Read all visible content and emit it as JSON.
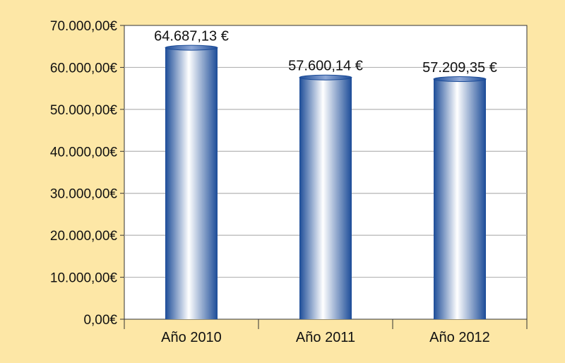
{
  "chart_data": {
    "type": "bar",
    "categories": [
      "Año 2010",
      "Año 2011",
      "Año 2012"
    ],
    "values": [
      64687.13,
      57600.14,
      57209.35
    ],
    "data_labels": [
      "64.687,13 €",
      "57.600,14 €",
      "57.209,35 €"
    ],
    "yticks": [
      0,
      10000,
      20000,
      30000,
      40000,
      50000,
      60000,
      70000
    ],
    "ytick_labels": [
      "0,00€",
      "10.000,00€",
      "20.000,00€",
      "30.000,00€",
      "40.000,00€",
      "50.000,00€",
      "60.000,00€",
      "70.000,00€"
    ],
    "ylim": [
      0,
      70000
    ],
    "title": "",
    "xlabel": "",
    "ylabel": "",
    "grid": true,
    "legend": "none"
  },
  "colors": {
    "page_background": "#fde7a6",
    "plot_background": "#ffffff",
    "bar_dark": "#1c4c98",
    "bar_light": "#ffffff",
    "grid": "#b4b4b4",
    "axis": "#333333"
  }
}
